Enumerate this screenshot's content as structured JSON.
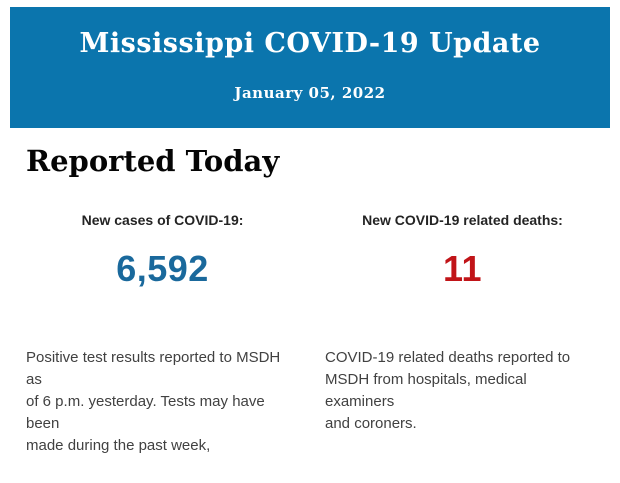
{
  "header": {
    "title": "Mississippi COVID-19 Update",
    "date": "January 05, 2022",
    "background_color": "#0b75ad",
    "text_color": "#ffffff"
  },
  "main": {
    "heading": "Reported Today",
    "stats": [
      {
        "label": "New cases of COVID-19:",
        "value": "6,592",
        "value_color": "#1a699c",
        "description": "Positive test results reported to MSDH as\nof 6 p.m. yesterday. Tests may have been\nmade during the past week,"
      },
      {
        "label": "New COVID-19 related deaths:",
        "value": "11",
        "value_color": "#c11418",
        "description": "COVID-19 related deaths reported to\nMSDH from hospitals, medical examiners\nand coroners."
      }
    ]
  }
}
